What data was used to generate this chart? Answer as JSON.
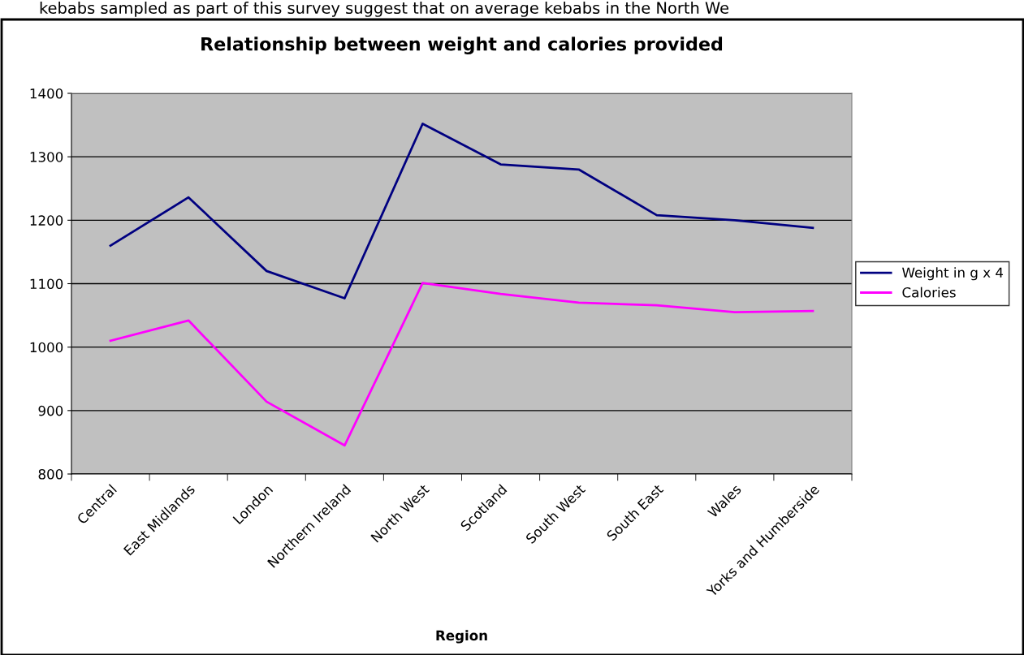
{
  "chart_data": {
    "type": "line",
    "title": "Relationship between weight and calories provided",
    "xlabel": "Region",
    "annotations": [
      "kebabs sampled as part of this survey suggest that on average kebabs in the North We"
    ],
    "categories": [
      "Central",
      "East Midlands",
      "London",
      "Northern Ireland",
      "North West",
      "Scotland",
      "South West",
      "South East",
      "Wales",
      "Yorks and Humberside"
    ],
    "series": [
      {
        "name": "Weight in g x 4",
        "color": "#000080",
        "values": [
          1160,
          1236,
          1120,
          1077,
          1352,
          1288,
          1280,
          1208,
          1200,
          1188
        ]
      },
      {
        "name": "Calories",
        "color": "#ff00ff",
        "values": [
          1010,
          1042,
          914,
          845,
          1101,
          1084,
          1070,
          1066,
          1055,
          1057
        ]
      }
    ],
    "ylim": [
      800,
      1400
    ],
    "yticks": [
      800,
      900,
      1000,
      1100,
      1200,
      1300,
      1400
    ],
    "grid": "y",
    "legend": "right",
    "marker": "none",
    "line_style": "solid"
  }
}
